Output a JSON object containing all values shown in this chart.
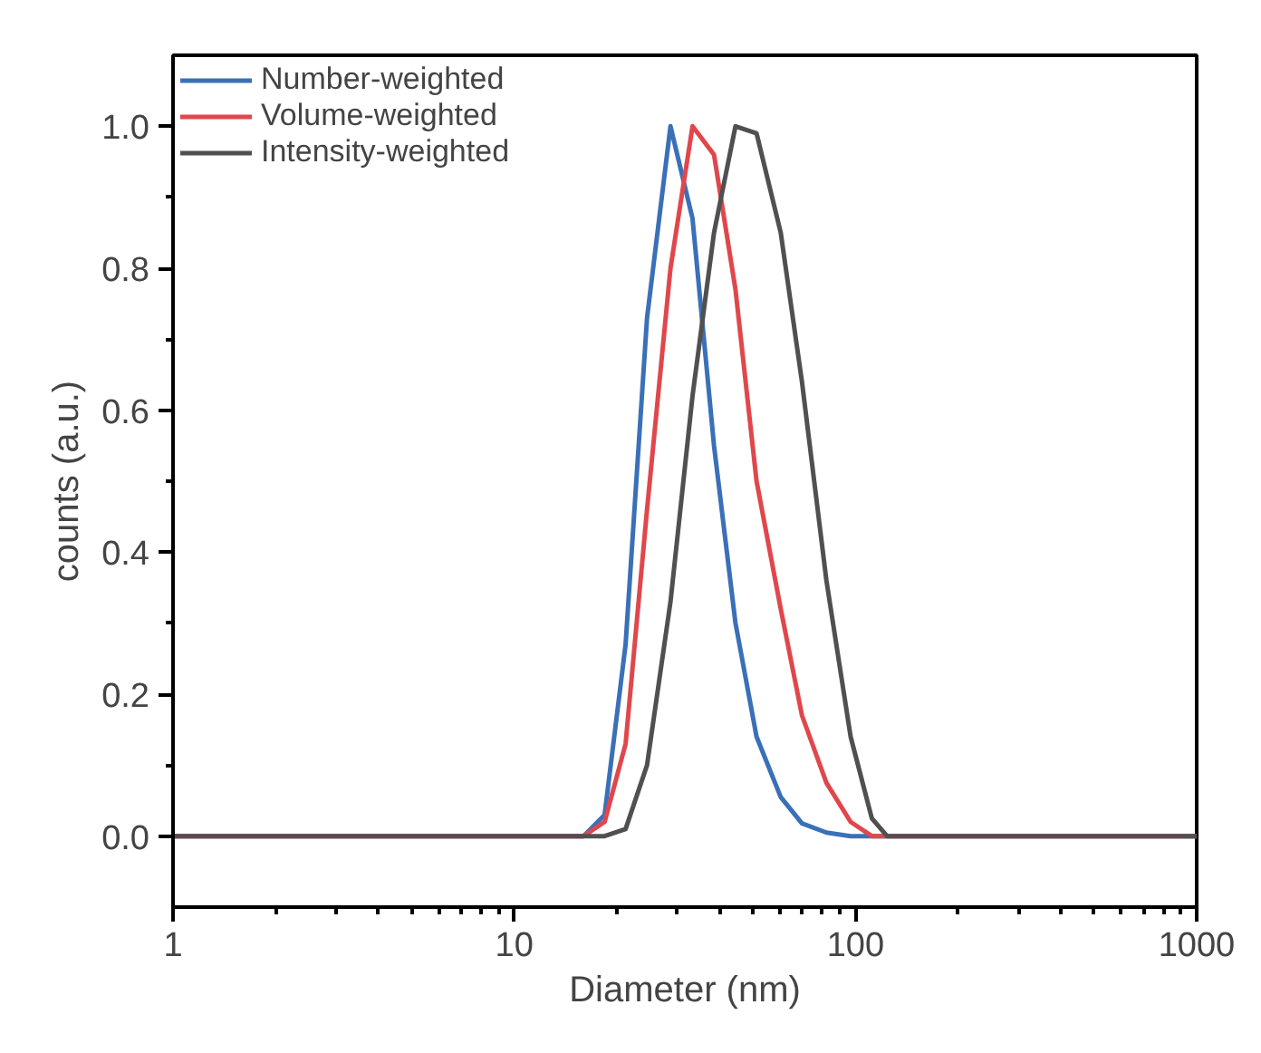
{
  "chart_data": {
    "type": "line",
    "xlabel": "Diameter (nm)",
    "ylabel": "counts (a.u.)",
    "log": "x",
    "x": [
      1,
      15.96,
      18.4,
      21.2,
      24.5,
      28.7,
      33.3,
      38.5,
      44.5,
      51.3,
      60.4,
      69.7,
      82.2,
      96.8,
      111.7,
      123.8,
      1000
    ],
    "series": [
      {
        "name": "Number-weighted",
        "color": "#3a70b8",
        "values": [
          0,
          0,
          0.03,
          0.27,
          0.73,
          1.0,
          0.87,
          0.55,
          0.3,
          0.14,
          0.055,
          0.018,
          0.005,
          0,
          0,
          0,
          0
        ]
      },
      {
        "name": "Volume-weighted",
        "color": "#e0474c",
        "values": [
          0,
          0,
          0.02,
          0.13,
          0.46,
          0.8,
          1.0,
          0.96,
          0.77,
          0.5,
          0.32,
          0.17,
          0.075,
          0.02,
          0,
          0,
          0
        ]
      },
      {
        "name": "Intensity-weighted",
        "color": "#505050",
        "values": [
          0,
          0,
          0,
          0.01,
          0.1,
          0.33,
          0.62,
          0.85,
          1.0,
          0.99,
          0.85,
          0.64,
          0.36,
          0.14,
          0.025,
          0,
          0
        ]
      }
    ],
    "xlim": [
      1,
      1000
    ],
    "xticks": [
      1,
      10,
      100,
      1000
    ],
    "ylim": [
      -0.1,
      1.1
    ],
    "yticks": [
      {
        "value": 0,
        "label": "0.0"
      },
      {
        "value": 0.2,
        "label": "0.2"
      },
      {
        "value": 0.4,
        "label": "0.4"
      },
      {
        "value": 0.6,
        "label": "0.6"
      },
      {
        "value": 0.8,
        "label": "0.8"
      },
      {
        "value": 1.0,
        "label": "1.0"
      }
    ],
    "grid": false,
    "legend": "top left",
    "marker": "none",
    "line_style": "solid"
  }
}
